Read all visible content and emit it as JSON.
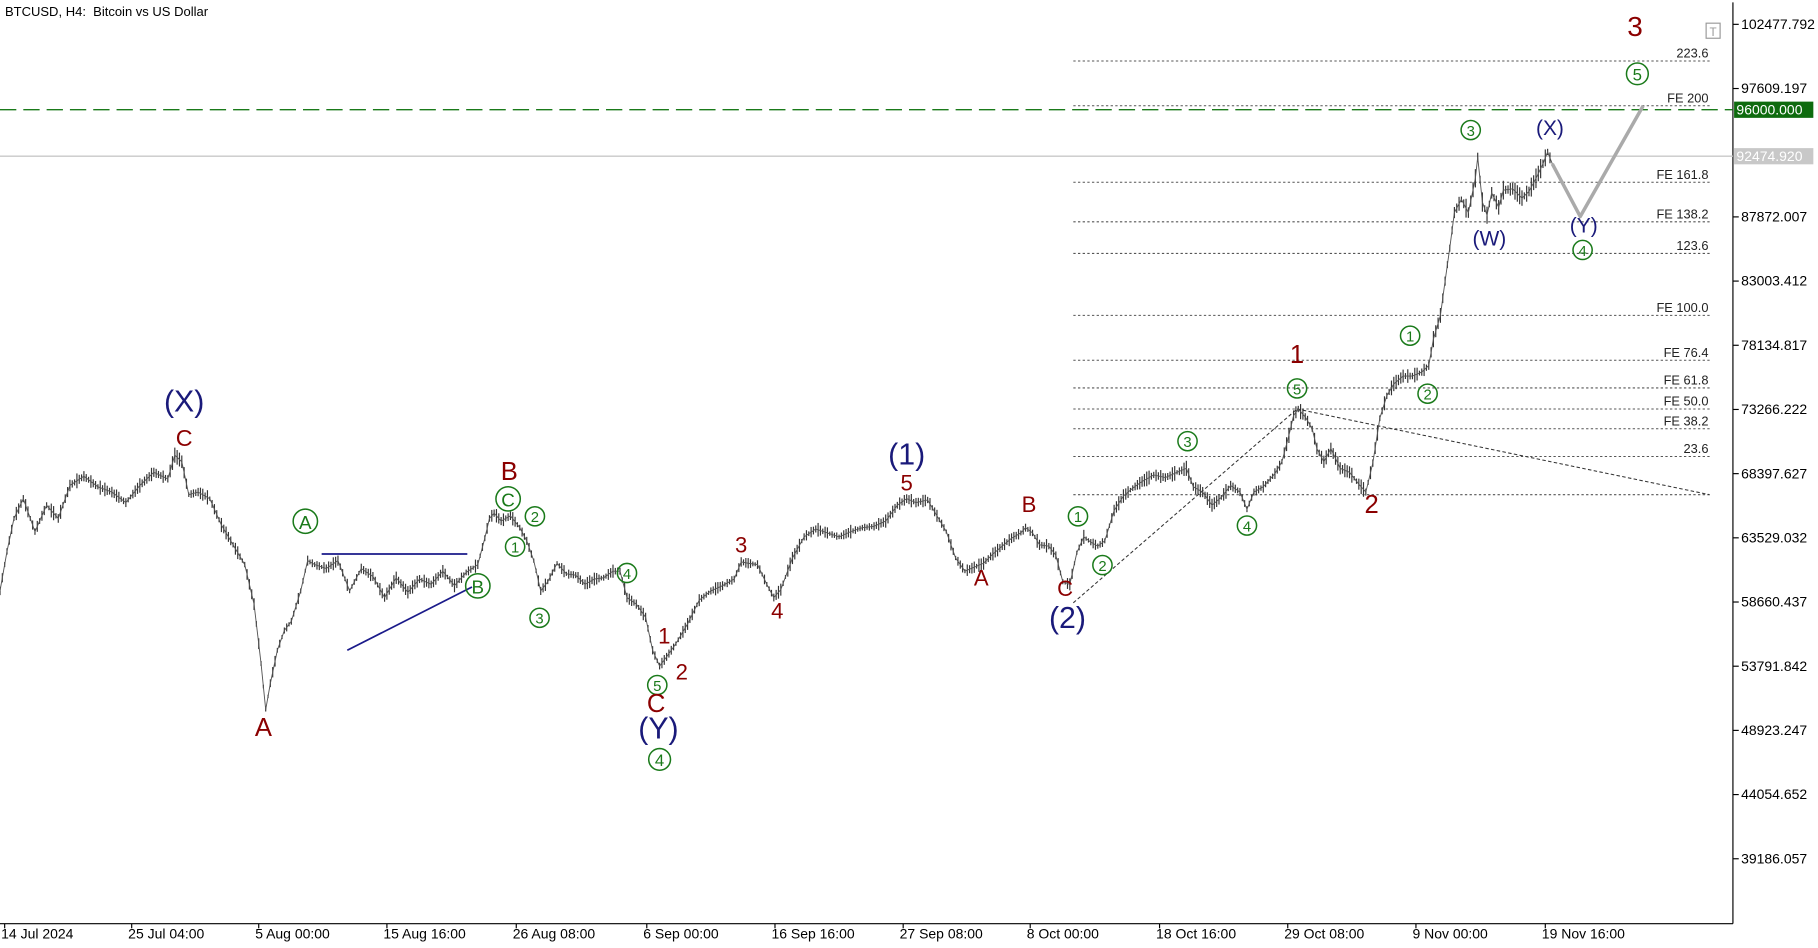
{
  "header": {
    "symbol": "BTCUSD",
    "timeframe": "H4",
    "description": "Bitcoin vs US Dollar"
  },
  "chart_data": {
    "type": "candlestick-line",
    "ylim": [
      34317.5,
      107346.4
    ],
    "y_ticks": [
      "102477.792",
      "97609.197",
      "87872.007",
      "83003.412",
      "78134.817",
      "73266.222",
      "68397.627",
      "63529.032",
      "58660.437",
      "53791.842",
      "48923.247",
      "44054.652",
      "39186.057"
    ],
    "x_ticks": [
      "14 Jul 2024",
      "25 Jul 04:00",
      "5 Aug 00:00",
      "15 Aug 16:00",
      "26 Aug 08:00",
      "6 Sep 00:00",
      "16 Sep 16:00",
      "27 Sep 08:00",
      "8 Oct 00:00",
      "18 Oct 16:00",
      "29 Oct 08:00",
      "9 Nov 00:00",
      "19 Nov 16:00"
    ],
    "price_path": [
      [
        0,
        59500
      ],
      [
        6,
        62500
      ],
      [
        12,
        65000
      ],
      [
        20,
        66500
      ],
      [
        30,
        64000
      ],
      [
        40,
        66000
      ],
      [
        50,
        65000
      ],
      [
        60,
        67500
      ],
      [
        72,
        68200
      ],
      [
        84,
        67400
      ],
      [
        96,
        67000
      ],
      [
        108,
        66200
      ],
      [
        120,
        67500
      ],
      [
        132,
        68500
      ],
      [
        144,
        68000
      ],
      [
        150,
        69800
      ],
      [
        156,
        69300
      ],
      [
        162,
        66800
      ],
      [
        170,
        67000
      ],
      [
        180,
        66500
      ],
      [
        190,
        64500
      ],
      [
        200,
        63000
      ],
      [
        210,
        61500
      ],
      [
        218,
        58500
      ],
      [
        224,
        54000
      ],
      [
        228,
        50500
      ],
      [
        232,
        52500
      ],
      [
        238,
        55000
      ],
      [
        244,
        56500
      ],
      [
        250,
        57200
      ],
      [
        258,
        59500
      ],
      [
        264,
        61800
      ],
      [
        270,
        61500
      ],
      [
        280,
        61200
      ],
      [
        290,
        61800
      ],
      [
        300,
        59500
      ],
      [
        310,
        61200
      ],
      [
        320,
        60600
      ],
      [
        330,
        59000
      ],
      [
        340,
        60500
      ],
      [
        350,
        59400
      ],
      [
        360,
        60400
      ],
      [
        370,
        60000
      ],
      [
        380,
        61000
      ],
      [
        390,
        59900
      ],
      [
        400,
        60900
      ],
      [
        410,
        61500
      ],
      [
        416,
        63500
      ],
      [
        420,
        65000
      ],
      [
        424,
        65400
      ],
      [
        430,
        64800
      ],
      [
        438,
        65200
      ],
      [
        446,
        64300
      ],
      [
        452,
        63300
      ],
      [
        458,
        61800
      ],
      [
        464,
        59500
      ],
      [
        470,
        60200
      ],
      [
        478,
        61600
      ],
      [
        486,
        60800
      ],
      [
        494,
        60700
      ],
      [
        502,
        60000
      ],
      [
        510,
        60400
      ],
      [
        518,
        60500
      ],
      [
        526,
        61000
      ],
      [
        532,
        61000
      ],
      [
        538,
        59000
      ],
      [
        546,
        58500
      ],
      [
        554,
        57500
      ],
      [
        560,
        55000
      ],
      [
        566,
        53800
      ],
      [
        572,
        54500
      ],
      [
        580,
        55500
      ],
      [
        590,
        57000
      ],
      [
        600,
        58800
      ],
      [
        610,
        59500
      ],
      [
        620,
        59900
      ],
      [
        630,
        60400
      ],
      [
        636,
        61700
      ],
      [
        642,
        61600
      ],
      [
        650,
        61500
      ],
      [
        658,
        60000
      ],
      [
        664,
        59000
      ],
      [
        670,
        59600
      ],
      [
        680,
        62000
      ],
      [
        690,
        63600
      ],
      [
        700,
        64200
      ],
      [
        710,
        63900
      ],
      [
        720,
        63600
      ],
      [
        730,
        64000
      ],
      [
        740,
        64300
      ],
      [
        750,
        64400
      ],
      [
        760,
        64800
      ],
      [
        770,
        66000
      ],
      [
        778,
        66500
      ],
      [
        786,
        66200
      ],
      [
        796,
        66400
      ],
      [
        804,
        65200
      ],
      [
        812,
        64000
      ],
      [
        820,
        62000
      ],
      [
        828,
        61000
      ],
      [
        836,
        61300
      ],
      [
        844,
        61600
      ],
      [
        852,
        62300
      ],
      [
        860,
        62900
      ],
      [
        868,
        63500
      ],
      [
        876,
        63900
      ],
      [
        880,
        64300
      ],
      [
        886,
        63900
      ],
      [
        892,
        63000
      ],
      [
        900,
        62900
      ],
      [
        906,
        62200
      ],
      [
        912,
        60200
      ],
      [
        918,
        60000
      ],
      [
        924,
        62400
      ],
      [
        930,
        63600
      ],
      [
        936,
        63200
      ],
      [
        942,
        62900
      ],
      [
        948,
        63300
      ],
      [
        956,
        65600
      ],
      [
        964,
        66700
      ],
      [
        972,
        67300
      ],
      [
        980,
        67800
      ],
      [
        990,
        68300
      ],
      [
        1000,
        68100
      ],
      [
        1010,
        68500
      ],
      [
        1018,
        68800
      ],
      [
        1024,
        67400
      ],
      [
        1032,
        67000
      ],
      [
        1040,
        66000
      ],
      [
        1048,
        66600
      ],
      [
        1056,
        67500
      ],
      [
        1064,
        67000
      ],
      [
        1070,
        65700
      ],
      [
        1076,
        67000
      ],
      [
        1084,
        67400
      ],
      [
        1094,
        68400
      ],
      [
        1100,
        69300
      ],
      [
        1106,
        71300
      ],
      [
        1110,
        72800
      ],
      [
        1114,
        73300
      ],
      [
        1120,
        72700
      ],
      [
        1126,
        71800
      ],
      [
        1130,
        70300
      ],
      [
        1136,
        69300
      ],
      [
        1142,
        70300
      ],
      [
        1150,
        68800
      ],
      [
        1158,
        68500
      ],
      [
        1166,
        67600
      ],
      [
        1172,
        67000
      ],
      [
        1178,
        69200
      ],
      [
        1184,
        72600
      ],
      [
        1190,
        74300
      ],
      [
        1196,
        75200
      ],
      [
        1204,
        75800
      ],
      [
        1212,
        75800
      ],
      [
        1220,
        76100
      ],
      [
        1226,
        76600
      ],
      [
        1230,
        78600
      ],
      [
        1236,
        80400
      ],
      [
        1240,
        83000
      ],
      [
        1244,
        85500
      ],
      [
        1248,
        88200
      ],
      [
        1254,
        89200
      ],
      [
        1260,
        88200
      ],
      [
        1266,
        90800
      ],
      [
        1268,
        92400
      ],
      [
        1272,
        89000
      ],
      [
        1276,
        88000
      ],
      [
        1280,
        89700
      ],
      [
        1286,
        88600
      ],
      [
        1290,
        89900
      ],
      [
        1298,
        90000
      ],
      [
        1306,
        89300
      ],
      [
        1312,
        89800
      ],
      [
        1318,
        90800
      ],
      [
        1324,
        91900
      ],
      [
        1328,
        92800
      ],
      [
        1332,
        91900
      ]
    ],
    "forecast_path": [
      [
        1332,
        91900
      ],
      [
        1356,
        87900
      ],
      [
        1410,
        96300
      ]
    ],
    "fib_levels": [
      {
        "label": "223.6",
        "price": 99700
      },
      {
        "label": "FE 200",
        "price": 96300
      },
      {
        "label": "FE 161.8",
        "price": 90500
      },
      {
        "label": "FE 138.2",
        "price": 87500
      },
      {
        "label": "123.6",
        "price": 85100
      },
      {
        "label": "FE 100.0",
        "price": 80400
      },
      {
        "label": "FE 76.4",
        "price": 77000
      },
      {
        "label": "FE 61.8",
        "price": 74900
      },
      {
        "label": "FE 50.0",
        "price": 73300
      },
      {
        "label": "FE 38.2",
        "price": 71800
      },
      {
        "label": "23.6",
        "price": 69700
      },
      {
        "label": "",
        "price": 66800
      }
    ],
    "horizontal_lines": [
      {
        "label": "96000.000",
        "price": 96000,
        "style": "dashed",
        "color": "#1a7a1a"
      },
      {
        "label": "92474.920",
        "price": 92474.92,
        "style": "solid",
        "color": "#c8c8c8"
      }
    ],
    "wave_labels": [
      {
        "text": "(X)",
        "x": 158,
        "price": 73100,
        "color": "#1a1a7a",
        "size": 26
      },
      {
        "text": "C",
        "x": 158,
        "price": 70500,
        "color": "#8b0000",
        "size": 20
      },
      {
        "text": "A",
        "x": 226,
        "price": 48500,
        "color": "#8b0000",
        "size": 22
      },
      {
        "text": "A",
        "x": 262,
        "price": 64200,
        "color": "#1a7a1a",
        "size": 19,
        "circled": true
      },
      {
        "text": "B",
        "x": 437,
        "price": 67900,
        "color": "#8b0000",
        "size": 22
      },
      {
        "text": "C",
        "x": 436,
        "price": 65900,
        "color": "#1a7a1a",
        "size": 19,
        "circled": true
      },
      {
        "text": "2",
        "x": 459,
        "price": 64700,
        "color": "#1a7a1a",
        "size": 15,
        "circled": true
      },
      {
        "text": "1",
        "x": 442,
        "price": 62400,
        "color": "#1a7a1a",
        "size": 15,
        "circled": true
      },
      {
        "text": "B",
        "x": 410,
        "price": 59300,
        "color": "#1a7a1a",
        "size": 19,
        "circled": true
      },
      {
        "text": "3",
        "x": 463,
        "price": 57000,
        "color": "#1a7a1a",
        "size": 15,
        "circled": true
      },
      {
        "text": "4",
        "x": 538,
        "price": 60400,
        "color": "#1a7a1a",
        "size": 15,
        "circled": true
      },
      {
        "text": "1",
        "x": 570,
        "price": 55500,
        "color": "#8b0000",
        "size": 19
      },
      {
        "text": "2",
        "x": 585,
        "price": 52800,
        "color": "#8b0000",
        "size": 19
      },
      {
        "text": "5",
        "x": 564,
        "price": 51900,
        "color": "#1a7a1a",
        "size": 15,
        "circled": true
      },
      {
        "text": "C",
        "x": 563,
        "price": 50300,
        "color": "#8b0000",
        "size": 22
      },
      {
        "text": "(Y)",
        "x": 565,
        "price": 48300,
        "color": "#1a1a7a",
        "size": 26
      },
      {
        "text": "4",
        "x": 566,
        "price": 46200,
        "color": "#1a7a1a",
        "size": 17,
        "circled": true
      },
      {
        "text": "3",
        "x": 636,
        "price": 62400,
        "color": "#8b0000",
        "size": 19
      },
      {
        "text": "4",
        "x": 667,
        "price": 57400,
        "color": "#8b0000",
        "size": 19
      },
      {
        "text": "(1)",
        "x": 778,
        "price": 69100,
        "color": "#1a1a7a",
        "size": 26
      },
      {
        "text": "5",
        "x": 778,
        "price": 67100,
        "color": "#8b0000",
        "size": 19
      },
      {
        "text": "B",
        "x": 883,
        "price": 65500,
        "color": "#8b0000",
        "size": 19
      },
      {
        "text": "A",
        "x": 842,
        "price": 59900,
        "color": "#8b0000",
        "size": 19
      },
      {
        "text": "1",
        "x": 925,
        "price": 64700,
        "color": "#1a7a1a",
        "size": 15,
        "circled": true
      },
      {
        "text": "2",
        "x": 946,
        "price": 61000,
        "color": "#1a7a1a",
        "size": 15,
        "circled": true
      },
      {
        "text": "C",
        "x": 914,
        "price": 59100,
        "color": "#8b0000",
        "size": 19
      },
      {
        "text": "(2)",
        "x": 916,
        "price": 56700,
        "color": "#1a1a7a",
        "size": 26
      },
      {
        "text": "3",
        "x": 1019,
        "price": 70400,
        "color": "#1a7a1a",
        "size": 15,
        "circled": true
      },
      {
        "text": "4",
        "x": 1070,
        "price": 64000,
        "color": "#1a7a1a",
        "size": 15,
        "circled": true
      },
      {
        "text": "1",
        "x": 1113,
        "price": 76800,
        "color": "#8b0000",
        "size": 22
      },
      {
        "text": "5",
        "x": 1113,
        "price": 74400,
        "color": "#1a7a1a",
        "size": 15,
        "circled": true
      },
      {
        "text": "2",
        "x": 1177,
        "price": 65400,
        "color": "#8b0000",
        "size": 22
      },
      {
        "text": "1",
        "x": 1210,
        "price": 78400,
        "color": "#1a7a1a",
        "size": 15,
        "circled": true
      },
      {
        "text": "2",
        "x": 1225,
        "price": 74000,
        "color": "#1a7a1a",
        "size": 15,
        "circled": true
      },
      {
        "text": "3",
        "x": 1262,
        "price": 94000,
        "color": "#1a7a1a",
        "size": 15,
        "circled": true
      },
      {
        "text": "(W)",
        "x": 1278,
        "price": 85700,
        "color": "#1a1a7a",
        "size": 18
      },
      {
        "text": "(X)",
        "x": 1330,
        "price": 94100,
        "color": "#1a1a7a",
        "size": 18
      },
      {
        "text": "(Y)",
        "x": 1359,
        "price": 86700,
        "color": "#1a1a7a",
        "size": 18
      },
      {
        "text": "4",
        "x": 1358,
        "price": 84900,
        "color": "#1a7a1a",
        "size": 15,
        "circled": true
      },
      {
        "text": "3",
        "x": 1403,
        "price": 101600,
        "color": "#8b0000",
        "size": 24
      },
      {
        "text": "5",
        "x": 1405,
        "price": 98200,
        "color": "#1a7a1a",
        "size": 17,
        "circled": true
      }
    ]
  }
}
